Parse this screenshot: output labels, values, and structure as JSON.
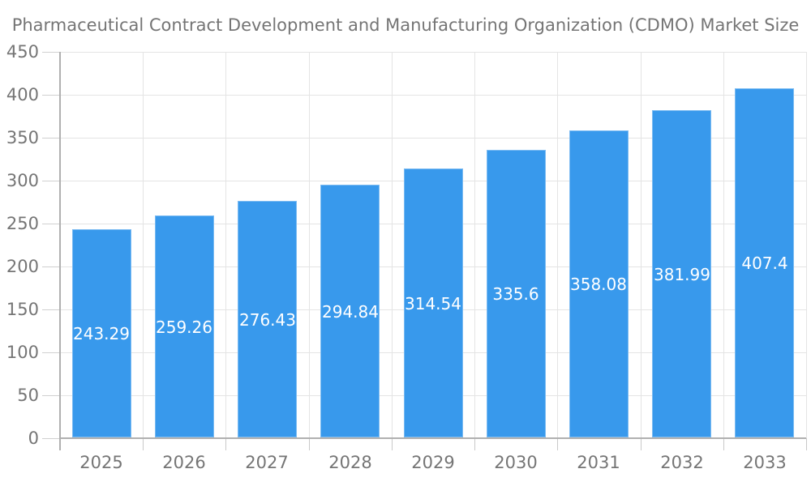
{
  "chart_data": {
    "type": "bar",
    "title": "Pharmaceutical Contract Development and Manufacturing Organization (CDMO) Market Size",
    "categories": [
      "2025",
      "2026",
      "2027",
      "2028",
      "2029",
      "2030",
      "2031",
      "2032",
      "2033"
    ],
    "values": [
      243.29,
      259.26,
      276.43,
      294.84,
      314.54,
      335.6,
      358.08,
      381.99,
      407.4
    ],
    "bar_labels": [
      "243.29",
      "259.26",
      "276.43",
      "294.84",
      "314.54",
      "335.6",
      "358.08",
      "381.99",
      "407.4"
    ],
    "xlabel": "",
    "ylabel": "",
    "ylim": [
      0,
      450
    ],
    "y_tick_step": 50,
    "y_tick_labels": [
      "0",
      "50",
      "100",
      "150",
      "200",
      "250",
      "300",
      "350",
      "400",
      "450"
    ],
    "grid": true,
    "legend_position": "none",
    "colors": {
      "bar": "#3899ec",
      "bar_value_text": "#ffffff",
      "axis_text": "#757575",
      "title_text": "#757575",
      "axis_line": "#b0b0b0",
      "gridline": "#e4e4e4",
      "tick": "#c9c9c9",
      "background": "#ffffff"
    }
  }
}
